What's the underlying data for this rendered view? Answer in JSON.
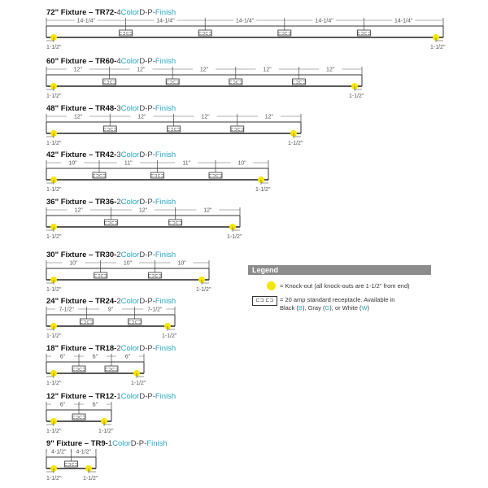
{
  "fixtures": [
    {
      "size": "72\" Fixture – TR72-",
      "count": "4",
      "color": "Color",
      "mid": "D-P-",
      "finish": "Finish",
      "dims": [
        "14-1/4\"",
        "14-1/4\"",
        "14-1/4\"",
        "14-1/4\"",
        "14-1/4\""
      ],
      "end_label": "1-1/2\""
    },
    {
      "size": "60\" Fixture – TR60-",
      "count": "4",
      "color": "Color",
      "mid": "D-P-",
      "finish": "Finish",
      "dims": [
        "12\"",
        "12\"",
        "12\"",
        "12\"",
        "12\""
      ],
      "end_label": "1-1/2\""
    },
    {
      "size": "48\" Fixture – TR48-",
      "count": "3",
      "color": "Color",
      "mid": "D-P-",
      "finish": "Finish",
      "dims": [
        "12\"",
        "12\"",
        "12\"",
        "12\""
      ],
      "end_label": "1-1/2\""
    },
    {
      "size": "42\" Fixture – TR42-",
      "count": "3",
      "color": "Color",
      "mid": "D-P-",
      "finish": "Finish",
      "dims": [
        "10\"",
        "11\"",
        "11\"",
        "10\""
      ],
      "end_label": "1-1/2\""
    },
    {
      "size": "36\" Fixture – TR36-",
      "count": "2",
      "color": "Color",
      "mid": "D-P-",
      "finish": "Finish",
      "dims": [
        "12\"",
        "12\"",
        "12\""
      ],
      "end_label": "1-1/2\""
    },
    {
      "size": "30\" Fixture – TR30-",
      "count": "2",
      "color": "Color",
      "mid": "D-P-",
      "finish": "Finish",
      "dims": [
        "10\"",
        "10\"",
        "10\""
      ],
      "end_label": "1-1/2\""
    },
    {
      "size": "24\" Fixture – TR24-",
      "count": "2",
      "color": "Color",
      "mid": "D-P-",
      "finish": "Finish",
      "dims": [
        "7-1/2\"",
        "9\"",
        "7-1/2\""
      ],
      "end_label": "1-1/2\""
    },
    {
      "size": "18\" Fixture – TR18-",
      "count": "2",
      "color": "Color",
      "mid": "D-P-",
      "finish": "Finish",
      "dims": [
        "6\"",
        "6\"",
        "6\""
      ],
      "end_label": "1-1/2\""
    },
    {
      "size": "12\" Fixture – TR12-",
      "count": "1",
      "color": "Color",
      "mid": "D-P-",
      "finish": "Finish",
      "dims": [
        "6\"",
        "6\""
      ],
      "end_label": "1-1/2\""
    },
    {
      "size": "9\" Fixture – TR9-",
      "count": "1",
      "color": "Color",
      "mid": "D-P-",
      "finish": "Finish",
      "dims": [
        "4-1/2\"",
        "4-1/2\""
      ],
      "end_label": "1-1/2\""
    }
  ],
  "legend": {
    "title": "Legend",
    "knockout_text": "= Knock-out (all knock-outs are 1-1/2\" from end)",
    "receptacle_text_1": "= 20 amp standard receptacle. Available in",
    "receptacle_text_2a": "Black (",
    "b": "B",
    "receptacle_text_2b": "), Gray (",
    "g": "G",
    "receptacle_text_2c": "), or White (",
    "w": "W",
    "receptacle_text_2d": ")",
    "receptacle_glyph": "⊏⊐ ⊏⊐"
  },
  "colors": {
    "accent": "#2aa6c2",
    "knockout": "#f5e600",
    "legend_bar": "#8c8c8c"
  }
}
